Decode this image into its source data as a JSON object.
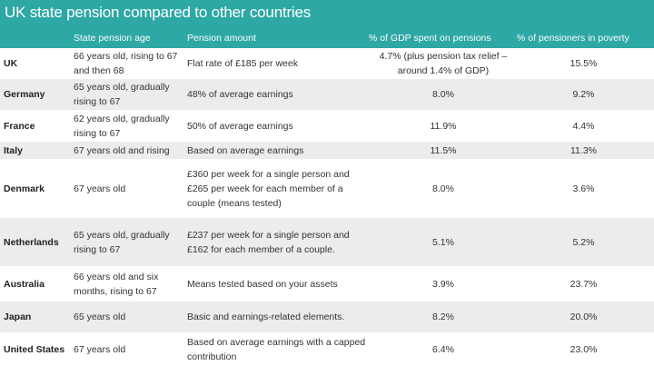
{
  "title": "UK state pension compared to other countries",
  "colors": {
    "header": "#2ea8a5",
    "alt_row": "#ececec"
  },
  "columns": [
    "",
    "State pension age",
    "Pension amount",
    "% of GDP spent on pensions",
    "% of pensioners in poverty"
  ],
  "rows": [
    {
      "country": "UK",
      "age": "66 years old, rising to 67 and then 68",
      "amount": "Flat rate of £185 per week",
      "gdp": "4.7% (plus pension tax relief – around 1.4% of GDP)",
      "poverty": "15.5%"
    },
    {
      "country": "Germany",
      "age": "65 years old, gradually rising to 67",
      "amount": "48% of average earnings",
      "gdp": "8.0%",
      "poverty": "9.2%"
    },
    {
      "country": "France",
      "age": "62 years old, gradually rising to 67",
      "amount": "50% of average earnings",
      "gdp": "11.9%",
      "poverty": "4.4%"
    },
    {
      "country": "Italy",
      "age": "67 years old and rising",
      "amount": "Based on average earnings",
      "gdp": "11.5%",
      "poverty": "11.3%"
    },
    {
      "country": "Denmark",
      "age": "67 years old",
      "amount": "£360 per week for a single person and £265 per week for each member of a couple (means tested)",
      "gdp": "8.0%",
      "poverty": "3.6%"
    },
    {
      "country": "Netherlands",
      "age": "65 years old, gradually rising to 67",
      "amount": "£237 per week for a single person and £162 for each member of a couple.",
      "gdp": "5.1%",
      "poverty": "5.2%"
    },
    {
      "country": "Australia",
      "age": "66 years old and six months, rising to 67",
      "amount": "Means tested based on your assets",
      "gdp": "3.9%",
      "poverty": "23.7%"
    },
    {
      "country": "Japan",
      "age": "65 years old",
      "amount": "Basic and earnings-related elements.",
      "gdp": "8.2%",
      "poverty": "20.0%"
    },
    {
      "country": "United States",
      "age": "67 years old",
      "amount": "Based on average earnings with a capped contribution",
      "gdp": "6.4%",
      "poverty": "23.0%"
    }
  ]
}
